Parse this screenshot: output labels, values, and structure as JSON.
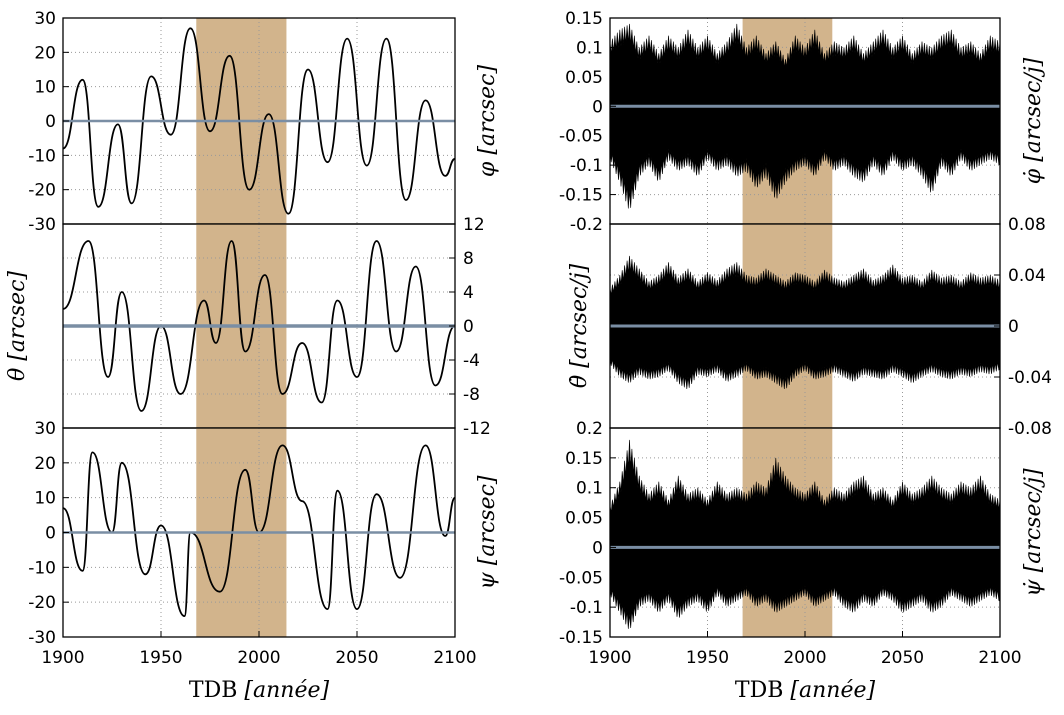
{
  "chart_data": [
    {
      "type": "line",
      "xlabel": "TDB [année]",
      "xlabel_roman": "TDB ",
      "xlabel_italic": "[année]",
      "xlim": [
        1900,
        2100
      ],
      "xticks": [
        "1900",
        "1950",
        "2000",
        "2050",
        "2100"
      ],
      "highlight_band": [
        1968,
        2014
      ],
      "highlight_color": "#d2b48c",
      "series_colors": [
        "#000000",
        "#7a8ea4"
      ],
      "panels": [
        {
          "ylabel": "φ [arcsec]",
          "ylabel_side": "right",
          "ylim": [
            -30,
            30
          ],
          "yticks": [
            "-30",
            "-20",
            "-10",
            "0",
            "10",
            "20",
            "30"
          ],
          "ytick_side": "left",
          "series": [
            {
              "x": [
                1900,
                1910,
                1918,
                1928,
                1935,
                1945,
                1955,
                1965,
                1975,
                1985,
                1995,
                2005,
                2015,
                2025,
                2035,
                2045,
                2055,
                2065,
                2075,
                2085,
                2095,
                2100
              ],
              "values": [
                -8,
                12,
                -25,
                -1,
                -24,
                13,
                -4,
                27,
                -3,
                19,
                -20,
                2,
                -27,
                15,
                -12,
                24,
                -13,
                24,
                -23,
                6,
                -16,
                -11
              ]
            },
            {
              "x": [
                1900,
                2100
              ],
              "values": [
                0,
                0
              ]
            }
          ]
        },
        {
          "ylabel": "θ [arcsec]",
          "ylabel_side": "left",
          "ylim": [
            -12,
            12
          ],
          "yticks": [
            "-12",
            "-8",
            "-4",
            "0",
            "4",
            "8",
            "12"
          ],
          "ytick_side": "right",
          "series": [
            {
              "x": [
                1900,
                1913,
                1923,
                1930,
                1940,
                1950,
                1960,
                1972,
                1978,
                1986,
                1993,
                2003,
                2012,
                2022,
                2032,
                2040,
                2050,
                2060,
                2070,
                2080,
                2090,
                2100
              ],
              "values": [
                2,
                10,
                -6,
                4,
                -10,
                0,
                -8,
                3,
                -2,
                10,
                -3,
                6,
                -8,
                -2,
                -9,
                3,
                -6,
                10,
                -3,
                7,
                -7,
                0
              ]
            },
            {
              "x": [
                1900,
                2100
              ],
              "values": [
                0,
                0
              ]
            }
          ]
        },
        {
          "ylabel": "ψ [arcsec]",
          "ylabel_side": "right",
          "ylim": [
            -30,
            30
          ],
          "yticks": [
            "-30",
            "-20",
            "-10",
            "0",
            "10",
            "20",
            "30"
          ],
          "ytick_side": "left",
          "series": [
            {
              "x": [
                1900,
                1910,
                1915,
                1925,
                1930,
                1942,
                1950,
                1962,
                1965,
                1980,
                1993,
                2000,
                2012,
                2022,
                2035,
                2040,
                2050,
                2060,
                2072,
                2085,
                2095,
                2100
              ],
              "values": [
                7,
                -11,
                23,
                0,
                20,
                -12,
                2,
                -24,
                0,
                -17,
                18,
                0,
                25,
                9,
                -22,
                12,
                -22,
                11,
                -13,
                25,
                -1,
                10
              ]
            },
            {
              "x": [
                1900,
                2100
              ],
              "values": [
                0,
                0
              ]
            }
          ]
        }
      ]
    },
    {
      "type": "line",
      "xlabel": "TDB [année]",
      "xlabel_roman": "TDB ",
      "xlabel_italic": "[année]",
      "xlim": [
        1900,
        2100
      ],
      "xticks": [
        "1900",
        "1950",
        "2000",
        "2050",
        "2100"
      ],
      "highlight_band": [
        1968,
        2014
      ],
      "highlight_color": "#d2b48c",
      "series_colors": [
        "#000000",
        "#7a8ea4"
      ],
      "panels": [
        {
          "ylabel": "φ̇ [arcsec/j]",
          "ylabel_side": "right",
          "ylim": [
            -0.2,
            0.15
          ],
          "yticks": [
            "-0.2",
            "-0.15",
            "-0.1",
            "-0.05",
            "0",
            "0.05",
            "0.1",
            "0.15"
          ],
          "ytick_side": "left",
          "band_envelope": {
            "x": [
              1900,
              1905,
              1910,
              1915,
              1920,
              1925,
              1930,
              1935,
              1940,
              1945,
              1950,
              1955,
              1960,
              1965,
              1970,
              1975,
              1980,
              1985,
              1990,
              1995,
              2000,
              2005,
              2010,
              2015,
              2020,
              2025,
              2030,
              2035,
              2040,
              2045,
              2050,
              2055,
              2060,
              2065,
              2070,
              2075,
              2080,
              2085,
              2090,
              2095,
              2100
            ],
            "upper": [
              0.11,
              0.13,
              0.14,
              0.1,
              0.12,
              0.09,
              0.12,
              0.1,
              0.13,
              0.1,
              0.12,
              0.09,
              0.11,
              0.14,
              0.1,
              0.12,
              0.09,
              0.11,
              0.08,
              0.12,
              0.1,
              0.13,
              0.09,
              0.11,
              0.1,
              0.12,
              0.09,
              0.11,
              0.13,
              0.1,
              0.12,
              0.09,
              0.11,
              0.1,
              0.12,
              0.13,
              0.1,
              0.11,
              0.09,
              0.12,
              0.11
            ],
            "lower": [
              -0.09,
              -0.13,
              -0.18,
              -0.12,
              -0.1,
              -0.13,
              -0.09,
              -0.11,
              -0.1,
              -0.12,
              -0.09,
              -0.11,
              -0.1,
              -0.12,
              -0.11,
              -0.14,
              -0.12,
              -0.16,
              -0.13,
              -0.11,
              -0.1,
              -0.12,
              -0.09,
              -0.11,
              -0.1,
              -0.12,
              -0.13,
              -0.1,
              -0.12,
              -0.09,
              -0.11,
              -0.1,
              -0.12,
              -0.15,
              -0.1,
              -0.12,
              -0.09,
              -0.11,
              -0.1,
              -0.09,
              -0.1
            ]
          }
        },
        {
          "ylabel": "θ̇ [arcsec/j]",
          "ylabel_side": "left",
          "ylim": [
            -0.08,
            0.08
          ],
          "yticks": [
            "-0.08",
            "-0.04",
            "0",
            "0.04",
            "0.08"
          ],
          "ytick_side": "right",
          "band_envelope": {
            "x": [
              1900,
              1905,
              1910,
              1915,
              1920,
              1925,
              1930,
              1935,
              1940,
              1945,
              1950,
              1955,
              1960,
              1965,
              1970,
              1975,
              1980,
              1985,
              1990,
              1995,
              2000,
              2005,
              2010,
              2015,
              2020,
              2025,
              2030,
              2035,
              2040,
              2045,
              2050,
              2055,
              2060,
              2065,
              2070,
              2075,
              2080,
              2085,
              2090,
              2095,
              2100
            ],
            "upper": [
              0.03,
              0.04,
              0.055,
              0.045,
              0.035,
              0.04,
              0.05,
              0.038,
              0.045,
              0.035,
              0.042,
              0.036,
              0.045,
              0.05,
              0.04,
              0.038,
              0.045,
              0.04,
              0.035,
              0.042,
              0.04,
              0.035,
              0.044,
              0.038,
              0.035,
              0.04,
              0.045,
              0.036,
              0.04,
              0.048,
              0.038,
              0.04,
              0.035,
              0.044,
              0.038,
              0.04,
              0.035,
              0.042,
              0.038,
              0.04,
              0.036
            ],
            "lower": [
              -0.03,
              -0.04,
              -0.045,
              -0.038,
              -0.042,
              -0.04,
              -0.035,
              -0.045,
              -0.05,
              -0.038,
              -0.04,
              -0.036,
              -0.044,
              -0.04,
              -0.035,
              -0.042,
              -0.04,
              -0.045,
              -0.05,
              -0.04,
              -0.035,
              -0.042,
              -0.04,
              -0.036,
              -0.04,
              -0.044,
              -0.038,
              -0.04,
              -0.042,
              -0.036,
              -0.04,
              -0.045,
              -0.04,
              -0.036,
              -0.04,
              -0.042,
              -0.038,
              -0.04,
              -0.036,
              -0.038,
              -0.034
            ]
          }
        },
        {
          "ylabel": "ψ̇ [arcsec/j]",
          "ylabel_side": "right",
          "ylim": [
            -0.15,
            0.2
          ],
          "yticks": [
            "-0.15",
            "-0.1",
            "-0.05",
            "0",
            "0.05",
            "0.1",
            "0.15",
            "0.2"
          ],
          "ytick_side": "left",
          "band_envelope": {
            "x": [
              1900,
              1905,
              1910,
              1915,
              1920,
              1925,
              1930,
              1935,
              1940,
              1945,
              1950,
              1955,
              1960,
              1965,
              1970,
              1975,
              1980,
              1985,
              1990,
              1995,
              2000,
              2005,
              2010,
              2015,
              2020,
              2025,
              2030,
              2035,
              2040,
              2045,
              2050,
              2055,
              2060,
              2065,
              2070,
              2075,
              2080,
              2085,
              2090,
              2095,
              2100
            ],
            "upper": [
              0.07,
              0.11,
              0.18,
              0.12,
              0.09,
              0.11,
              0.08,
              0.12,
              0.09,
              0.1,
              0.08,
              0.11,
              0.09,
              0.1,
              0.09,
              0.11,
              0.1,
              0.15,
              0.12,
              0.1,
              0.09,
              0.11,
              0.08,
              0.1,
              0.09,
              0.11,
              0.12,
              0.09,
              0.1,
              0.08,
              0.11,
              0.09,
              0.1,
              0.12,
              0.1,
              0.09,
              0.11,
              0.1,
              0.12,
              0.09,
              0.08
            ],
            "lower": [
              -0.08,
              -0.11,
              -0.14,
              -0.1,
              -0.09,
              -0.11,
              -0.09,
              -0.12,
              -0.1,
              -0.09,
              -0.11,
              -0.08,
              -0.1,
              -0.09,
              -0.08,
              -0.1,
              -0.09,
              -0.11,
              -0.1,
              -0.09,
              -0.08,
              -0.1,
              -0.09,
              -0.08,
              -0.1,
              -0.11,
              -0.09,
              -0.1,
              -0.08,
              -0.09,
              -0.11,
              -0.1,
              -0.09,
              -0.11,
              -0.1,
              -0.08,
              -0.09,
              -0.1,
              -0.09,
              -0.08,
              -0.09
            ]
          }
        }
      ]
    }
  ]
}
